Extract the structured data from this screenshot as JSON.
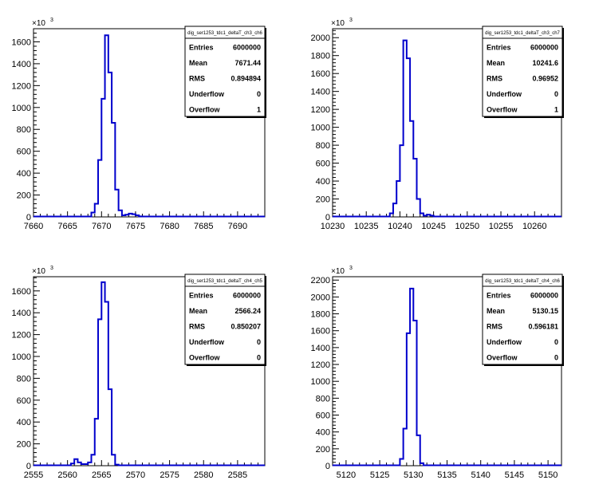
{
  "chart_data": [
    {
      "type": "bar",
      "title": "dig_ser1253_tdc1_deltaT_ch3_ch6",
      "xlim": [
        7660,
        7694
      ],
      "ylim": [
        0,
        1720
      ],
      "exponent_label": "×10",
      "exponent_sup": "3",
      "xticks": [
        7660,
        7665,
        7670,
        7675,
        7680,
        7685,
        7690
      ],
      "yticks": [
        0,
        200,
        400,
        600,
        800,
        1000,
        1200,
        1400,
        1600
      ],
      "stats": [
        {
          "label": "Entries",
          "value": "6000000"
        },
        {
          "label": "Mean",
          "value": "7671.44"
        },
        {
          "label": "RMS",
          "value": "0.894894"
        },
        {
          "label": "Underflow",
          "value": "0"
        },
        {
          "label": "Overflow",
          "value": "1"
        }
      ],
      "bins": [
        {
          "x0": 7668.5,
          "x1": 7669.0,
          "y": 40
        },
        {
          "x0": 7669.0,
          "x1": 7669.5,
          "y": 120
        },
        {
          "x0": 7669.5,
          "x1": 7670.0,
          "y": 520
        },
        {
          "x0": 7670.0,
          "x1": 7670.5,
          "y": 1080
        },
        {
          "x0": 7670.5,
          "x1": 7671.0,
          "y": 1660
        },
        {
          "x0": 7671.0,
          "x1": 7671.5,
          "y": 1320
        },
        {
          "x0": 7671.5,
          "x1": 7672.0,
          "y": 860
        },
        {
          "x0": 7672.0,
          "x1": 7672.5,
          "y": 250
        },
        {
          "x0": 7672.5,
          "x1": 7673.0,
          "y": 60
        },
        {
          "x0": 7673.0,
          "x1": 7673.5,
          "y": 15
        },
        {
          "x0": 7673.5,
          "x1": 7674.0,
          "y": 20
        },
        {
          "x0": 7674.0,
          "x1": 7674.5,
          "y": 30
        },
        {
          "x0": 7674.5,
          "x1": 7675.0,
          "y": 25
        },
        {
          "x0": 7675.0,
          "x1": 7675.5,
          "y": 15
        },
        {
          "x0": 7675.5,
          "x1": 7676.0,
          "y": 5
        }
      ]
    },
    {
      "type": "bar",
      "title": "dig_ser1253_tdc1_deltaT_ch3_ch7",
      "xlim": [
        10230,
        10264
      ],
      "ylim": [
        0,
        2100
      ],
      "exponent_label": "×10",
      "exponent_sup": "3",
      "xticks": [
        10230,
        10235,
        10240,
        10245,
        10250,
        10255,
        10260
      ],
      "yticks": [
        0,
        200,
        400,
        600,
        800,
        1000,
        1200,
        1400,
        1600,
        1800,
        2000
      ],
      "stats": [
        {
          "label": "Entries",
          "value": "6000000"
        },
        {
          "label": "Mean",
          "value": "10241.6"
        },
        {
          "label": "RMS",
          "value": "0.96952"
        },
        {
          "label": "Underflow",
          "value": "0"
        },
        {
          "label": "Overflow",
          "value": "1"
        }
      ],
      "bins": [
        {
          "x0": 10238.5,
          "x1": 10239.0,
          "y": 40
        },
        {
          "x0": 10239.0,
          "x1": 10239.5,
          "y": 150
        },
        {
          "x0": 10239.5,
          "x1": 10240.0,
          "y": 400
        },
        {
          "x0": 10240.0,
          "x1": 10240.5,
          "y": 800
        },
        {
          "x0": 10240.5,
          "x1": 10241.0,
          "y": 1970
        },
        {
          "x0": 10241.0,
          "x1": 10241.5,
          "y": 1770
        },
        {
          "x0": 10241.5,
          "x1": 10242.0,
          "y": 1070
        },
        {
          "x0": 10242.0,
          "x1": 10242.5,
          "y": 650
        },
        {
          "x0": 10242.5,
          "x1": 10243.0,
          "y": 200
        },
        {
          "x0": 10243.0,
          "x1": 10243.5,
          "y": 40
        },
        {
          "x0": 10243.5,
          "x1": 10244.0,
          "y": 15
        },
        {
          "x0": 10244.0,
          "x1": 10244.5,
          "y": 25
        },
        {
          "x0": 10244.5,
          "x1": 10245.0,
          "y": 15
        },
        {
          "x0": 10245.0,
          "x1": 10245.5,
          "y": 5
        }
      ]
    },
    {
      "type": "bar",
      "title": "dig_ser1253_tdc1_deltaT_ch4_ch5",
      "xlim": [
        2555,
        2589
      ],
      "ylim": [
        0,
        1730
      ],
      "exponent_label": "×10",
      "exponent_sup": "3",
      "xticks": [
        2555,
        2560,
        2565,
        2570,
        2575,
        2580,
        2585
      ],
      "yticks": [
        0,
        200,
        400,
        600,
        800,
        1000,
        1200,
        1400,
        1600
      ],
      "stats": [
        {
          "label": "Entries",
          "value": "6000000"
        },
        {
          "label": "Mean",
          "value": "2566.24"
        },
        {
          "label": "RMS",
          "value": "0.850207"
        },
        {
          "label": "Underflow",
          "value": "0"
        },
        {
          "label": "Overflow",
          "value": "0"
        }
      ],
      "bins": [
        {
          "x0": 2560.5,
          "x1": 2561.0,
          "y": 20
        },
        {
          "x0": 2561.0,
          "x1": 2561.5,
          "y": 60
        },
        {
          "x0": 2561.5,
          "x1": 2562.0,
          "y": 30
        },
        {
          "x0": 2562.0,
          "x1": 2562.5,
          "y": 15
        },
        {
          "x0": 2562.5,
          "x1": 2563.0,
          "y": 15
        },
        {
          "x0": 2563.0,
          "x1": 2563.5,
          "y": 30
        },
        {
          "x0": 2563.5,
          "x1": 2564.0,
          "y": 100
        },
        {
          "x0": 2564.0,
          "x1": 2564.5,
          "y": 430
        },
        {
          "x0": 2564.5,
          "x1": 2565.0,
          "y": 1340
        },
        {
          "x0": 2565.0,
          "x1": 2565.5,
          "y": 1680
        },
        {
          "x0": 2565.5,
          "x1": 2566.0,
          "y": 1500
        },
        {
          "x0": 2566.0,
          "x1": 2566.5,
          "y": 700
        },
        {
          "x0": 2566.5,
          "x1": 2567.0,
          "y": 100
        },
        {
          "x0": 2567.0,
          "x1": 2567.5,
          "y": 10
        }
      ]
    },
    {
      "type": "bar",
      "title": "dig_ser1253_tdc1_deltaT_ch4_ch6",
      "xlim": [
        5118,
        5152
      ],
      "ylim": [
        0,
        2240
      ],
      "exponent_label": "×10",
      "exponent_sup": "3",
      "xticks": [
        5120,
        5125,
        5130,
        5135,
        5140,
        5145,
        5150
      ],
      "yticks": [
        0,
        200,
        400,
        600,
        800,
        1000,
        1200,
        1400,
        1600,
        1800,
        2000,
        2200
      ],
      "stats": [
        {
          "label": "Entries",
          "value": "6000000"
        },
        {
          "label": "Mean",
          "value": "5130.15"
        },
        {
          "label": "RMS",
          "value": "0.596181"
        },
        {
          "label": "Underflow",
          "value": "0"
        },
        {
          "label": "Overflow",
          "value": "0"
        }
      ],
      "bins": [
        {
          "x0": 5128.0,
          "x1": 5128.5,
          "y": 80
        },
        {
          "x0": 5128.5,
          "x1": 5129.0,
          "y": 440
        },
        {
          "x0": 5129.0,
          "x1": 5129.5,
          "y": 1570
        },
        {
          "x0": 5129.5,
          "x1": 5130.0,
          "y": 2100
        },
        {
          "x0": 5130.0,
          "x1": 5130.5,
          "y": 1720
        },
        {
          "x0": 5130.5,
          "x1": 5131.0,
          "y": 360
        },
        {
          "x0": 5131.0,
          "x1": 5131.5,
          "y": 30
        }
      ]
    }
  ]
}
